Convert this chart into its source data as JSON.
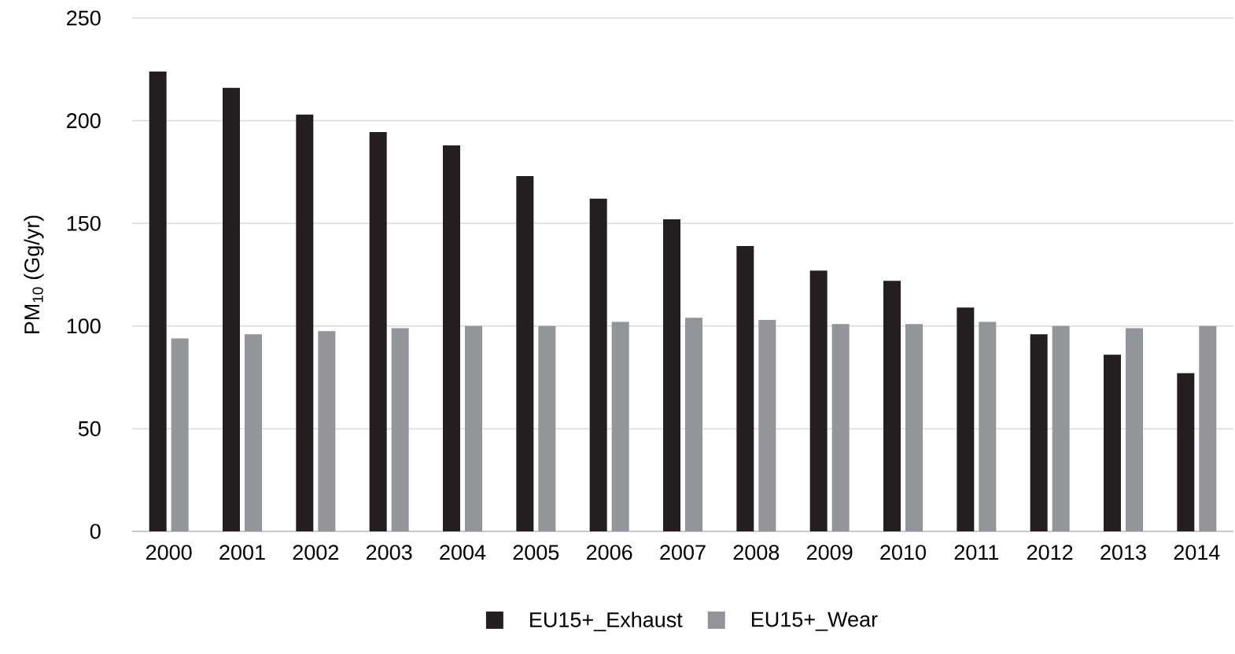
{
  "chart_data": {
    "type": "bar",
    "ylabel": "PM$_{10}$ (Gg/yr)",
    "categories": [
      "2000",
      "2001",
      "2002",
      "2003",
      "2004",
      "2005",
      "2006",
      "2007",
      "2008",
      "2009",
      "2010",
      "2011",
      "2012",
      "2013",
      "2014"
    ],
    "series": [
      {
        "name": "EU15+_Exhaust",
        "color": "#231f20",
        "values": [
          224,
          216,
          203,
          194.5,
          188,
          173,
          162,
          152,
          139,
          127,
          122,
          109,
          96,
          86,
          77
        ]
      },
      {
        "name": "EU15+_Wear",
        "color": "#939598",
        "values": [
          94,
          96,
          97.5,
          99,
          100,
          100,
          102,
          104,
          103,
          101,
          101,
          102,
          100,
          99,
          100
        ]
      }
    ],
    "ylim": [
      0,
      250
    ],
    "yticks": [
      0,
      50,
      100,
      150,
      200,
      250
    ],
    "grid": "y",
    "legend": "bottom"
  }
}
